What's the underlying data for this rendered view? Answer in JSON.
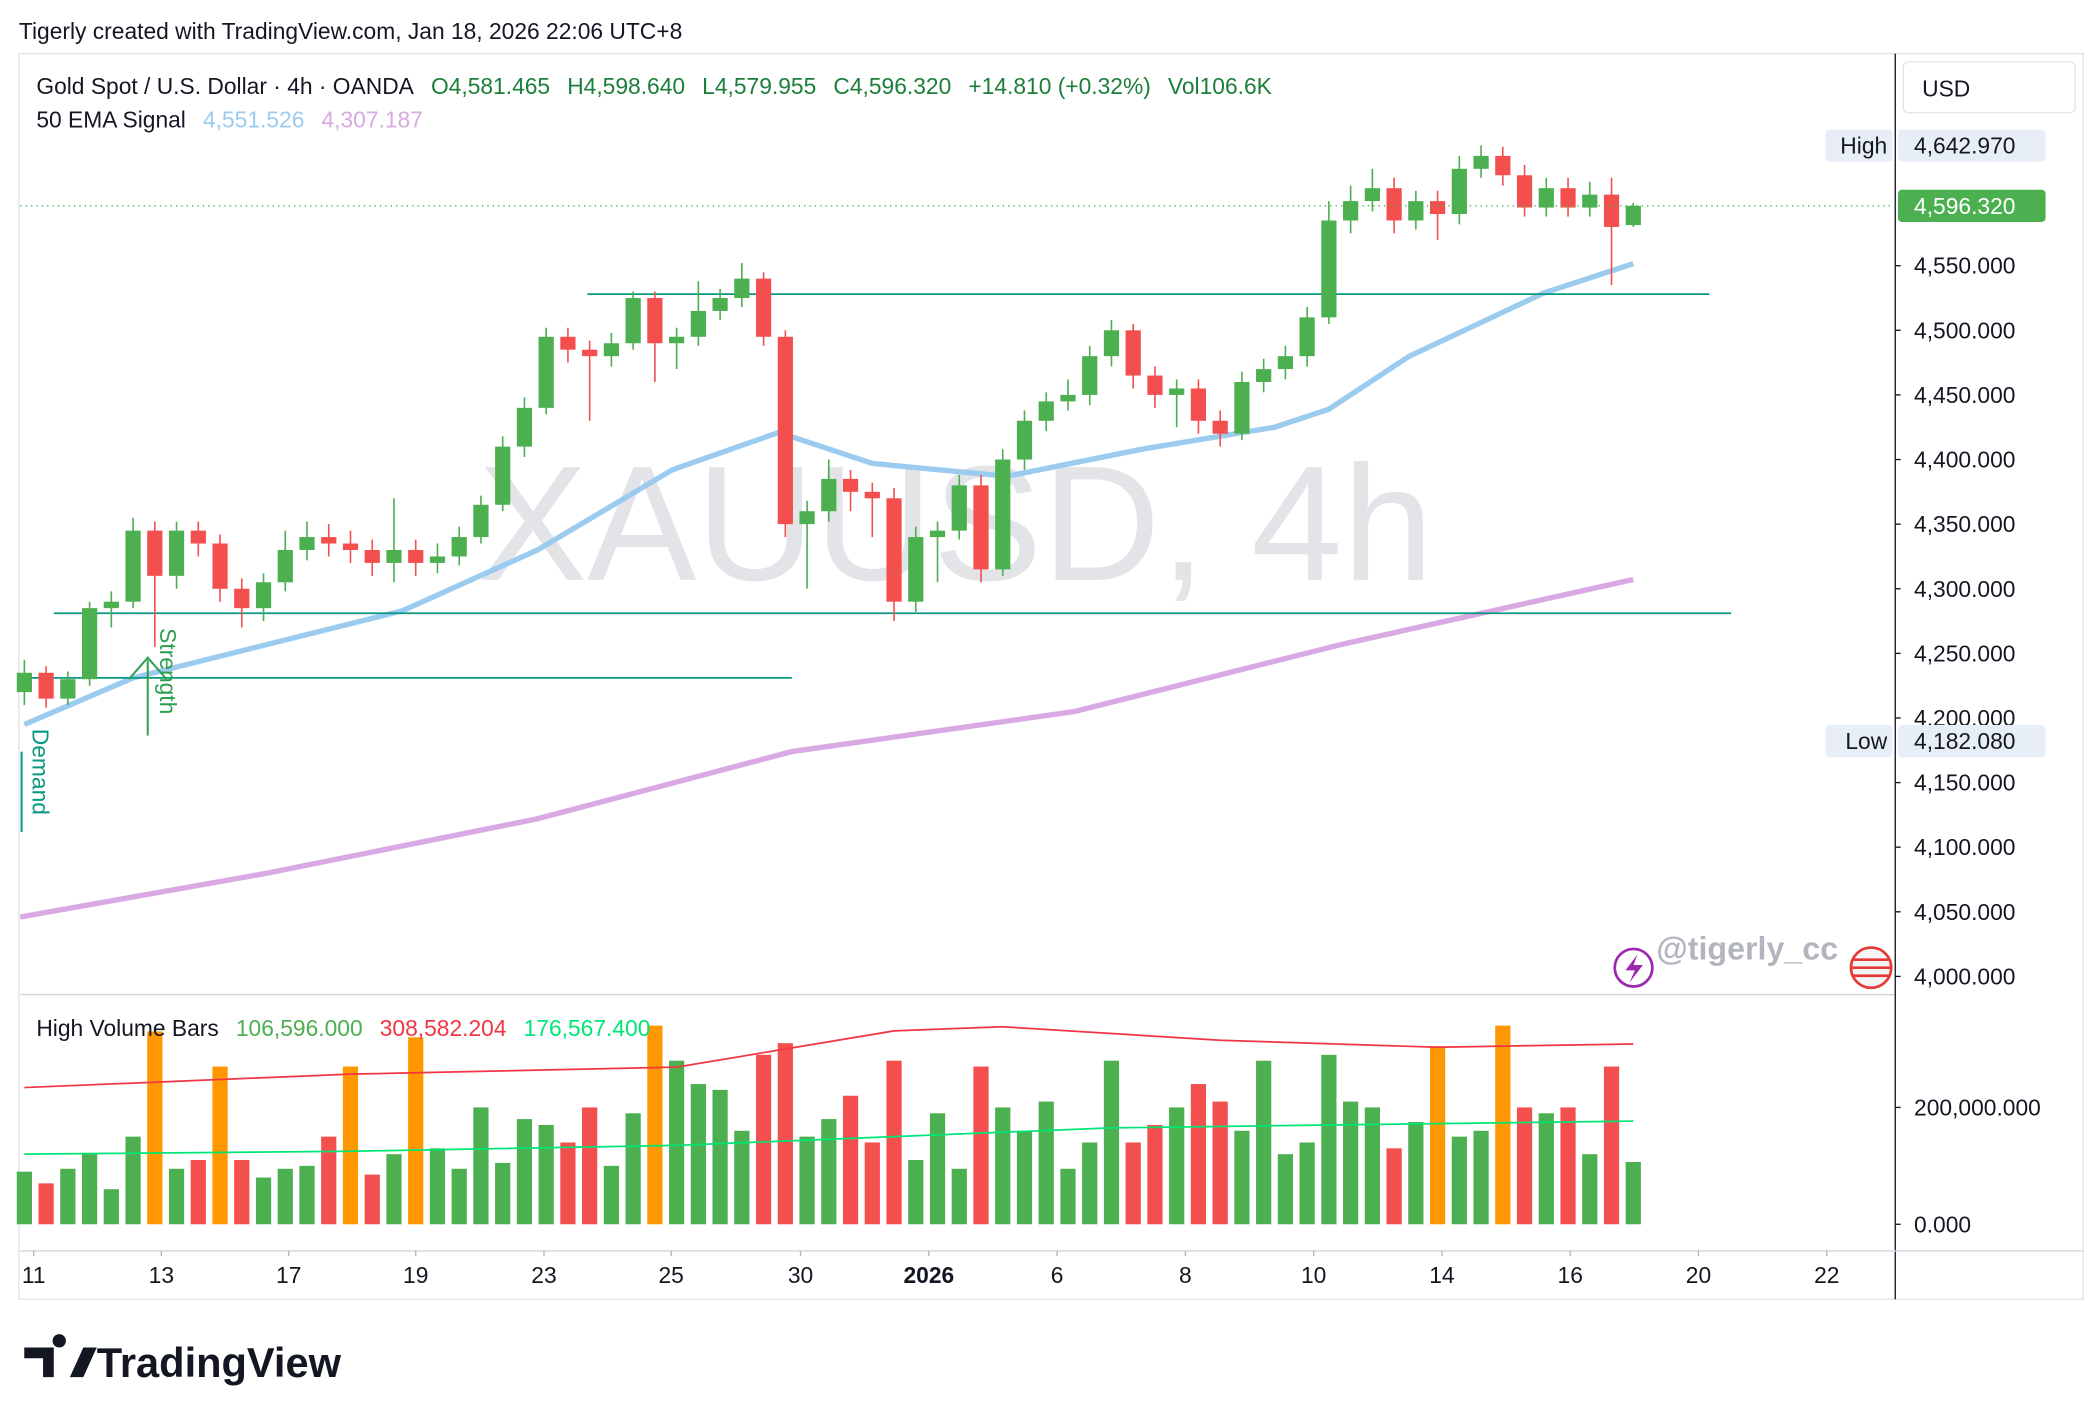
{
  "header": {
    "credit": "Tigerly created with TradingView.com, Jan 18, 2026 22:06 UTC+8"
  },
  "chart_data": {
    "type": "candlestick",
    "symbol": "Gold Spot / U.S. Dollar · 4h · OANDA",
    "ohlc_labels": [
      "O4,581.465",
      "H4,598.640",
      "L4,579.955",
      "C4,596.320",
      "+14.810 (+0.32%)",
      "Vol106.6K"
    ],
    "watermark": "XAUUSD, 4h",
    "currency": "USD",
    "up_color": "#4caf50",
    "down_color": "#f44f4f",
    "xlim": [
      -0.19,
      86.05
    ],
    "xticks": [
      {
        "value": 0.43,
        "label": "11"
      },
      {
        "value": 6.3,
        "label": "13"
      },
      {
        "value": 12.16,
        "label": "17"
      },
      {
        "value": 18.0,
        "label": "19"
      },
      {
        "value": 23.9,
        "label": "23"
      },
      {
        "value": 29.75,
        "label": "25"
      },
      {
        "value": 35.7,
        "label": "30"
      },
      {
        "value": 41.6,
        "label": "2026"
      },
      {
        "value": 47.5,
        "label": "6"
      },
      {
        "value": 53.4,
        "label": "8"
      },
      {
        "value": 59.3,
        "label": "10"
      },
      {
        "value": 65.2,
        "label": "14"
      },
      {
        "value": 71.1,
        "label": "16"
      },
      {
        "value": 77.0,
        "label": "20"
      },
      {
        "value": 82.9,
        "label": "22"
      }
    ],
    "ylim": [
      3987,
      4712
    ],
    "yticks": [
      {
        "value": 4000,
        "label": "4,000.000"
      },
      {
        "value": 4050,
        "label": "4,050.000"
      },
      {
        "value": 4100,
        "label": "4,100.000"
      },
      {
        "value": 4150,
        "label": "4,150.000"
      },
      {
        "value": 4200,
        "label": "4,200.000"
      },
      {
        "value": 4250,
        "label": "4,250.000"
      },
      {
        "value": 4300,
        "label": "4,300.000"
      },
      {
        "value": 4350,
        "label": "4,350.000"
      },
      {
        "value": 4400,
        "label": "4,400.000"
      },
      {
        "value": 4450,
        "label": "4,450.000"
      },
      {
        "value": 4500,
        "label": "4,500.000"
      },
      {
        "value": 4550,
        "label": "4,550.000"
      }
    ],
    "open": [
      4220,
      4235,
      4215,
      4230,
      4285,
      4290,
      4345,
      4310,
      4345,
      4335,
      4300,
      4285,
      4305,
      4330,
      4340,
      4335,
      4330,
      4320,
      4330,
      4320,
      4325,
      4340,
      4365,
      4410,
      4440,
      4495,
      4485,
      4480,
      4490,
      4525,
      4490,
      4495,
      4515,
      4525,
      4540,
      4495,
      4350,
      4360,
      4385,
      4375,
      4370,
      4290,
      4340,
      4345,
      4380,
      4315,
      4400,
      4430,
      4445,
      4450,
      4480,
      4500,
      4465,
      4450,
      4455,
      4430,
      4420,
      4460,
      4470,
      4480,
      4510,
      4585,
      4600,
      4610,
      4585,
      4600,
      4590,
      4625,
      4635,
      4620,
      4595,
      4610,
      4595,
      4605,
      4581.465
    ],
    "high": [
      4245,
      4240,
      4236,
      4290,
      4298,
      4355,
      4352,
      4352,
      4352,
      4342,
      4308,
      4312,
      4345,
      4352,
      4350,
      4345,
      4338,
      4370,
      4338,
      4335,
      4348,
      4372,
      4418,
      4448,
      4502,
      4502,
      4492,
      4498,
      4530,
      4530,
      4502,
      4538,
      4532,
      4552,
      4545,
      4500,
      4368,
      4400,
      4392,
      4382,
      4378,
      4348,
      4352,
      4388,
      4388,
      4408,
      4438,
      4452,
      4462,
      4488,
      4508,
      4505,
      4472,
      4462,
      4462,
      4438,
      4468,
      4478,
      4488,
      4518,
      4600,
      4612,
      4625,
      4618,
      4608,
      4608,
      4635,
      4643,
      4642,
      4628,
      4618,
      4618,
      4615,
      4618,
      4598.64
    ],
    "low": [
      4210,
      4208,
      4210,
      4225,
      4270,
      4285,
      4255,
      4300,
      4325,
      4290,
      4270,
      4275,
      4298,
      4322,
      4325,
      4320,
      4310,
      4305,
      4310,
      4312,
      4318,
      4335,
      4360,
      4402,
      4435,
      4475,
      4430,
      4472,
      4485,
      4460,
      4470,
      4488,
      4508,
      4518,
      4488,
      4340,
      4300,
      4352,
      4360,
      4340,
      4275,
      4282,
      4305,
      4338,
      4305,
      4310,
      4392,
      4422,
      4438,
      4442,
      4472,
      4455,
      4440,
      4425,
      4420,
      4410,
      4415,
      4452,
      4462,
      4472,
      4505,
      4575,
      4592,
      4575,
      4578,
      4570,
      4582,
      4618,
      4612,
      4588,
      4588,
      4588,
      4588,
      4535,
      4579.955
    ],
    "close": [
      4235,
      4215,
      4230,
      4285,
      4290,
      4345,
      4310,
      4345,
      4335,
      4300,
      4285,
      4305,
      4330,
      4340,
      4335,
      4330,
      4320,
      4330,
      4320,
      4325,
      4340,
      4365,
      4410,
      4440,
      4495,
      4485,
      4480,
      4490,
      4525,
      4490,
      4495,
      4515,
      4525,
      4540,
      4495,
      4350,
      4360,
      4385,
      4375,
      4370,
      4290,
      4340,
      4345,
      4380,
      4315,
      4400,
      4430,
      4445,
      4450,
      4480,
      4500,
      4465,
      4450,
      4455,
      4430,
      4420,
      4460,
      4470,
      4480,
      4510,
      4585,
      4600,
      4610,
      4585,
      4600,
      4590,
      4625,
      4635,
      4620,
      4595,
      4610,
      4595,
      4605,
      4580,
      4596.32
    ],
    "last_price": {
      "value": 4596.32,
      "label": "4,596.320",
      "color": "#4caf50"
    },
    "high_marker": {
      "text": "High",
      "value": 4642.97,
      "label": "4,642.970"
    },
    "low_marker": {
      "text": "Low",
      "value": 4182.08,
      "label": "4,182.080"
    },
    "ema": {
      "title": "50 EMA Signal",
      "series": [
        {
          "label": "4,551.526",
          "color": "#9ccbf0",
          "x": [
            0,
            5,
            11.2,
            17.4,
            23.6,
            29.8,
            34.7,
            39,
            45.2,
            51.4,
            57.5,
            60,
            63.7,
            69.9,
            74
          ],
          "values": [
            4195,
            4231,
            4257,
            4283,
            4330,
            4392,
            4421,
            4397,
            4387,
            4408,
            4425,
            4439,
            4480,
            4529,
            4551.526
          ]
        },
        {
          "label": "4,307.187",
          "color": "#d9a9e4",
          "x": [
            -0.19,
            11.2,
            23.6,
            35.3,
            48.3,
            60.6,
            74
          ],
          "values": [
            4046,
            4080,
            4122,
            4174,
            4205,
            4257,
            4307.187
          ]
        }
      ]
    },
    "hlines": [
      {
        "value": 4528,
        "x": [
          25.9,
          77.5
        ]
      },
      {
        "value": 4281,
        "x": [
          1.36,
          78.5
        ]
      },
      {
        "value": 4231,
        "x": [
          -0.19,
          35.3
        ]
      }
    ],
    "hline_color": "#089981",
    "annotations": [
      "Strength",
      "Demand"
    ],
    "handle": "@tigerly_cc",
    "volume": {
      "title": "High Volume Bars",
      "ylim": [
        -41000,
        384000
      ],
      "yticks": [
        {
          "value": 0,
          "label": "0.000"
        },
        {
          "value": 200000,
          "label": "200,000.000"
        }
      ],
      "values": [
        90000,
        70000,
        95000,
        120000,
        60000,
        150000,
        330000,
        95000,
        110000,
        270000,
        110000,
        80000,
        95000,
        100000,
        150000,
        270000,
        85000,
        120000,
        320000,
        130000,
        95000,
        200000,
        105000,
        180000,
        170000,
        140000,
        200000,
        100000,
        190000,
        340000,
        280000,
        240000,
        230000,
        160000,
        290000,
        310000,
        150000,
        180000,
        220000,
        140000,
        280000,
        110000,
        190000,
        95000,
        270000,
        200000,
        160000,
        210000,
        95000,
        140000,
        280000,
        140000,
        170000,
        200000,
        240000,
        210000,
        160000,
        280000,
        120000,
        140000,
        290000,
        210000,
        200000,
        130000,
        175000,
        305000,
        150000,
        160000,
        340000,
        200000,
        190000,
        200000,
        120000,
        270000,
        106596
      ],
      "colors": [
        "#4caf50",
        "#f44f4f",
        "#4caf50",
        "#4caf50",
        "#4caf50",
        "#4caf50",
        "#ff9800",
        "#4caf50",
        "#f44f4f",
        "#ff9800",
        "#f44f4f",
        "#4caf50",
        "#4caf50",
        "#4caf50",
        "#f44f4f",
        "#ff9800",
        "#f44f4f",
        "#4caf50",
        "#ff9800",
        "#4caf50",
        "#4caf50",
        "#4caf50",
        "#4caf50",
        "#4caf50",
        "#4caf50",
        "#f44f4f",
        "#f44f4f",
        "#4caf50",
        "#4caf50",
        "#ff9800",
        "#4caf50",
        "#4caf50",
        "#4caf50",
        "#4caf50",
        "#f44f4f",
        "#f44f4f",
        "#4caf50",
        "#4caf50",
        "#f44f4f",
        "#f44f4f",
        "#f44f4f",
        "#4caf50",
        "#4caf50",
        "#4caf50",
        "#f44f4f",
        "#4caf50",
        "#4caf50",
        "#4caf50",
        "#4caf50",
        "#4caf50",
        "#4caf50",
        "#f44f4f",
        "#f44f4f",
        "#4caf50",
        "#f44f4f",
        "#f44f4f",
        "#4caf50",
        "#4caf50",
        "#4caf50",
        "#4caf50",
        "#4caf50",
        "#4caf50",
        "#4caf50",
        "#f44f4f",
        "#4caf50",
        "#ff9800",
        "#4caf50",
        "#4caf50",
        "#ff9800",
        "#f44f4f",
        "#4caf50",
        "#f44f4f",
        "#4caf50",
        "#f44f4f",
        "#4caf50"
      ],
      "value_label": "106,596.000",
      "value_label_color": "#4caf50",
      "lines": [
        {
          "label": "308,582.204",
          "color": "#f23645",
          "x": [
            0,
            15,
            30,
            40,
            45,
            55,
            65,
            74
          ],
          "values": [
            234000,
            257000,
            269000,
            331000,
            338000,
            315000,
            303000,
            308582.204
          ]
        },
        {
          "label": "176,567.400",
          "color": "#00e676",
          "x": [
            0,
            15,
            30,
            40,
            50,
            60,
            74
          ],
          "values": [
            120000,
            125000,
            135000,
            150000,
            165000,
            170000,
            176567.4
          ]
        }
      ]
    }
  },
  "footer": {
    "brand": "TradingView"
  }
}
